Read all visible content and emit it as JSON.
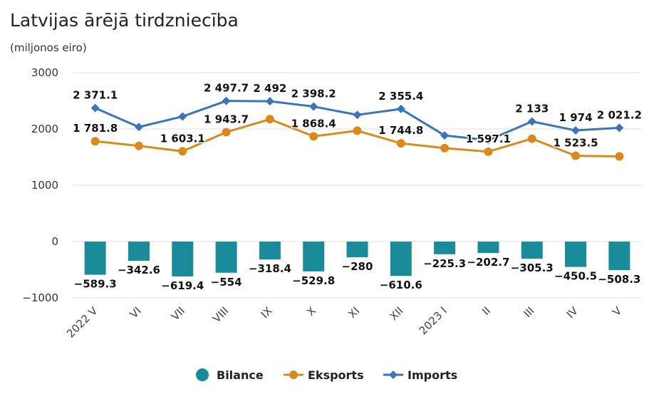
{
  "chart_data": {
    "type": "bar",
    "title": "Latvijas ārējā tirdzniecība",
    "subtitle": "(miljonos eiro)",
    "categories": [
      "2022 V",
      "VI",
      "VII",
      "VIII",
      "IX",
      "X",
      "XI",
      "XII",
      "2023 I",
      "II",
      "III",
      "IV",
      "V"
    ],
    "ylim": [
      -1000,
      3000
    ],
    "yticks": [
      -1000,
      0,
      1000,
      2000,
      3000
    ],
    "ytick_labels": [
      "−1000",
      "0",
      "1000",
      "2000",
      "3000"
    ],
    "grid": true,
    "legend_position": "bottom-center",
    "series": [
      {
        "name": "Bilance",
        "type": "bar",
        "color": "#1a8b9a",
        "values": [
          -589.3,
          -342.6,
          -619.4,
          -554,
          -318.4,
          -529.8,
          -280,
          -610.6,
          -225.3,
          -202.7,
          -305.3,
          -450.5,
          -508.3
        ],
        "labels": [
          "−589.3",
          "−342.6",
          "−619.4",
          "−554",
          "−318.4",
          "−529.8",
          "−280",
          "−610.6",
          "−225.3",
          "−202.7",
          "−305.3",
          "−450.5",
          "−508.3"
        ]
      },
      {
        "name": "Eksports",
        "type": "line",
        "color": "#d98a1c",
        "values": [
          1781.8,
          1700,
          1603.1,
          1943.7,
          2174,
          1868.4,
          1970,
          1744.8,
          1660,
          1597.1,
          1828,
          1523.5,
          1513
        ],
        "labels": [
          "1 781.8",
          "",
          "1 603.1",
          "1 943.7",
          "",
          "1 868.4",
          "",
          "1 744.8",
          "",
          "1 597.1",
          "",
          "1 523.5",
          ""
        ]
      },
      {
        "name": "Imports",
        "type": "line",
        "color": "#3a74b9",
        "values": [
          2371.1,
          2035,
          2222,
          2497.7,
          2492,
          2398.2,
          2250,
          2355.4,
          1885,
          1800,
          2133,
          1974,
          2021.2
        ],
        "labels": [
          "2 371.1",
          "",
          "",
          "2 497.7",
          "2 492",
          "2 398.2",
          "",
          "2 355.4",
          "",
          "",
          "2 133",
          "1 974",
          "2 021.2"
        ]
      }
    ]
  }
}
